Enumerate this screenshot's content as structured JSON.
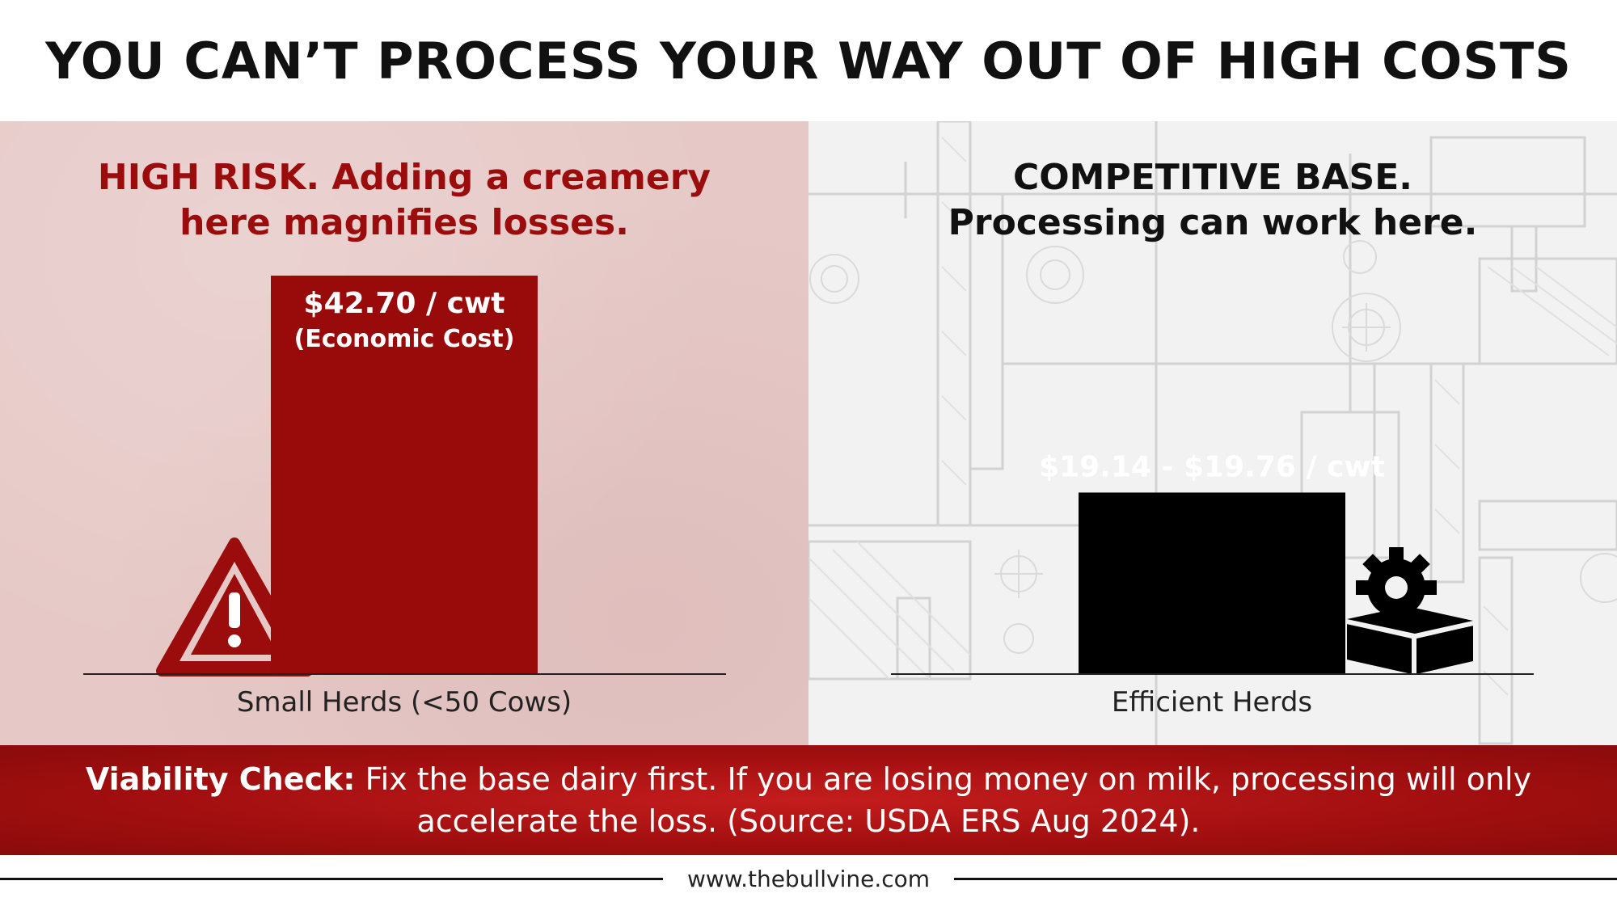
{
  "title": "YOU CAN’T PROCESS YOUR WAY OUT OF HIGH COSTS",
  "left_panel": {
    "headline_line1": "HIGH RISK. Adding a creamery",
    "headline_line2": "here magnifies losses.",
    "icon": "warning-triangle-icon",
    "background_color": "#e6c9c7",
    "accent_color": "#9b0d0d"
  },
  "right_panel": {
    "headline_line1": "COMPETITIVE BASE.",
    "headline_line2": "Processing can work here.",
    "icon": "gear-box-icon",
    "background_color": "#f2f2f2",
    "accent_color": "#111111"
  },
  "chart_data": {
    "type": "bar",
    "categories": [
      "Small Herds (<50 Cows)",
      "Efficient Herds"
    ],
    "values": [
      42.7,
      19.45
    ],
    "ranges": [
      null,
      [
        19.14,
        19.76
      ]
    ],
    "data_labels": [
      [
        "$42.70 / cwt",
        "(Economic Cost)"
      ],
      [
        "$19.14 - $19.76 / cwt"
      ]
    ],
    "unit": "$ / cwt",
    "colors": [
      "#990a0a",
      "#000000"
    ],
    "ylim": [
      0,
      45
    ],
    "grid": false,
    "legend": "none"
  },
  "footer": {
    "lead": "Viability Check:",
    "text": "Fix the base dairy first. If you are losing money on milk, processing will only accelerate the loss. (Source: USDA ERS Aug 2024).",
    "background_color": "#a30f10"
  },
  "website": "www.thebullvine.com"
}
